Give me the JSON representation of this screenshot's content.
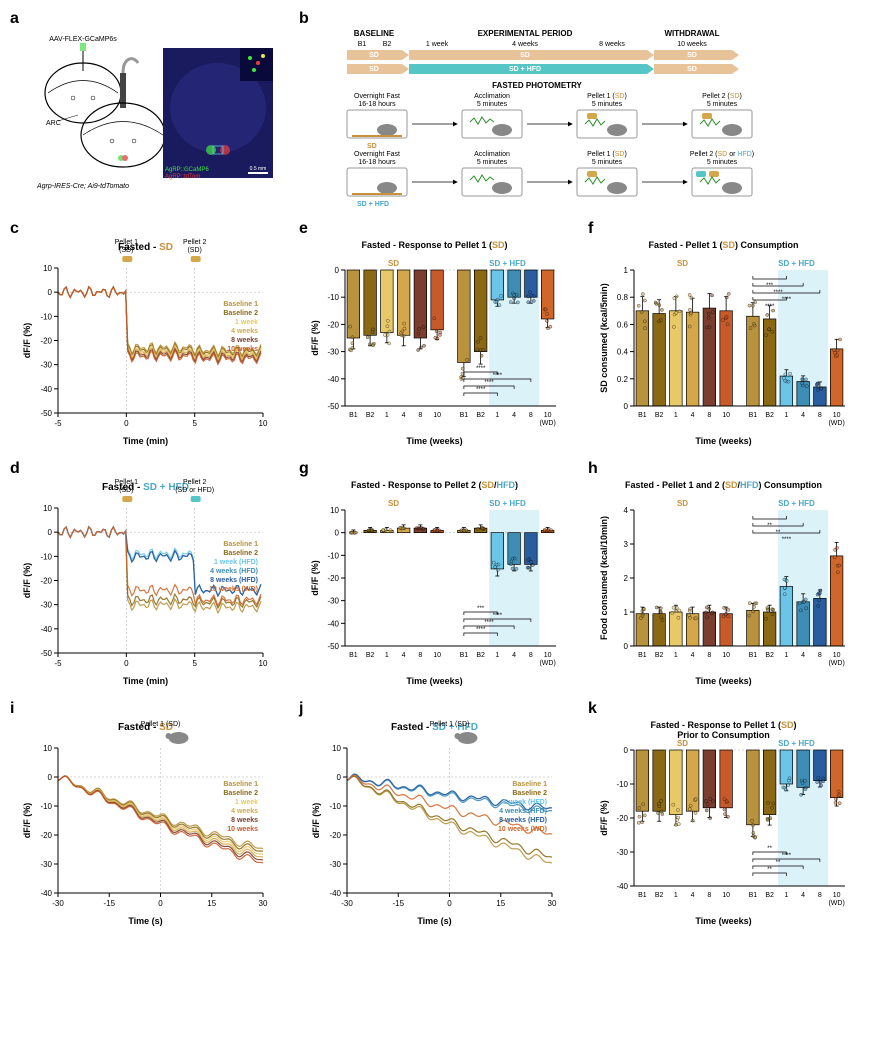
{
  "panels": {
    "a": {
      "label": "a"
    },
    "b": {
      "label": "b"
    },
    "c": {
      "label": "c"
    },
    "d": {
      "label": "d"
    },
    "e": {
      "label": "e"
    },
    "f": {
      "label": "f"
    },
    "g": {
      "label": "g"
    },
    "h": {
      "label": "h"
    },
    "i": {
      "label": "i"
    },
    "j": {
      "label": "j"
    },
    "k": {
      "label": "k"
    }
  },
  "colors": {
    "baseline1": "#b8923d",
    "baseline2": "#8b6914",
    "week1_sd": "#e8c968",
    "week4_sd": "#d4a84a",
    "week8_sd": "#7b3d2e",
    "week10_sd": "#c75a2a",
    "week1_hfd": "#6bc5e8",
    "week4_hfd": "#3d8db5",
    "week8_hfd": "#2a5d9e",
    "week10_wd": "#d1662a",
    "sd_label": "#c9913a",
    "hfd_label": "#4aa8c9",
    "sd_timeline": "#e8c39a",
    "hfd_timeline": "#56c5c5",
    "brain_bg": "#1a1a5e",
    "gcamp": "#3de83d",
    "tdtom": "#e83d3d"
  },
  "panel_a": {
    "virus_label": "AAV-FLEX-GCaMP6s",
    "region_label": "ARC",
    "mouse_line": "Agrp-IRES-Cre; Ai9-tdTomato",
    "inset_labels": {
      "gcamp": "AgRP::GCaMP6",
      "tdtom": "AgRP::tdTom"
    },
    "scale_bar": "0.5 mm"
  },
  "panel_b": {
    "phases": {
      "baseline": "BASELINE",
      "exp": "EXPERIMENTAL PERIOD",
      "wd": "WITHDRAWAL"
    },
    "baseline_marks": [
      "B1",
      "B2"
    ],
    "weeks": [
      "1 week",
      "4 weeks",
      "8 weeks",
      "10 weeks"
    ],
    "sd": "SD",
    "sdhfd": "SD + HFD",
    "photometry_header": "FASTED PHOTOMETRY",
    "steps": [
      "Overnight Fast\n16-18 hours",
      "Acclimation\n5 minutes",
      "Pellet 1 (SD)\n5 minutes",
      "Pellet 2 (SD)\n5 minutes"
    ],
    "steps_hfd": [
      "Overnight Fast\n16-18 hours",
      "Acclimation\n5 minutes",
      "Pellet 1 (SD)\n5 minutes",
      "Pellet 2 (SD or HFD)\n5 minutes"
    ]
  },
  "panel_c": {
    "title": "Fasted - SD",
    "pellet1": "Pellet 1\n(SD)",
    "pellet2": "Pellet 2\n(SD)",
    "ylabel": "dF/F (%)",
    "xlabel": "Time (min)",
    "xlim": [
      -5,
      10
    ],
    "ylim": [
      -50,
      10
    ],
    "xticks": [
      -5,
      0,
      5,
      10
    ],
    "yticks": [
      -50,
      -40,
      -30,
      -20,
      -10,
      0,
      10
    ],
    "legend": [
      "Baseline 1",
      "Baseline 2",
      "1 week",
      "4 weeks",
      "8 weeks",
      "10 weeks"
    ],
    "legend_colors": [
      "#b8923d",
      "#8b6914",
      "#e8c968",
      "#d4a84a",
      "#7b3d2e",
      "#c75a2a"
    ]
  },
  "panel_d": {
    "title": "Fasted - SD + HFD",
    "pellet1": "Pellet 1\n(SD)",
    "pellet2": "Pellet 2\n(SD or HFD)",
    "ylabel": "dF/F (%)",
    "xlabel": "Time (min)",
    "xlim": [
      -5,
      10
    ],
    "ylim": [
      -50,
      10
    ],
    "xticks": [
      -5,
      0,
      5,
      10
    ],
    "yticks": [
      -50,
      -40,
      -30,
      -20,
      -10,
      0,
      10
    ],
    "legend": [
      "Baseline 1",
      "Baseline 2",
      "1 week (HFD)",
      "4 weeks (HFD)",
      "8 weeks (HFD)",
      "10 weeks (WD)"
    ],
    "legend_colors": [
      "#b8923d",
      "#8b6914",
      "#6bc5e8",
      "#3d8db5",
      "#2a5d9e",
      "#d1662a"
    ]
  },
  "panel_e": {
    "title": "Fasted - Response to Pellet 1 (SD)",
    "groups": [
      "SD",
      "SD + HFD"
    ],
    "ylabel": "dF/F (%)",
    "xlabel": "Time (weeks)",
    "ylim": [
      -50,
      0
    ],
    "yticks": [
      -50,
      -40,
      -30,
      -20,
      -10,
      0
    ],
    "xlabels": [
      "B1",
      "B2",
      "1",
      "4",
      "8",
      "10",
      "B1",
      "B2",
      "1",
      "4",
      "8",
      "10\n(WD)"
    ],
    "bars_sd": [
      -25,
      -24,
      -23,
      -24,
      -25,
      -22
    ],
    "bars_hfd": [
      -34,
      -30,
      -11,
      -10,
      -10,
      -18
    ],
    "colors_sd": [
      "#b8923d",
      "#8b6914",
      "#e8c968",
      "#d4a84a",
      "#7b3d2e",
      "#c75a2a"
    ],
    "colors_hfd": [
      "#b8923d",
      "#8b6914",
      "#6bc5e8",
      "#3d8db5",
      "#2a5d9e",
      "#d1662a"
    ],
    "shade_cols": [
      8,
      9,
      10
    ],
    "sig": [
      "****",
      "****",
      "****",
      "****",
      "****"
    ]
  },
  "panel_f": {
    "title": "Fasted - Pellet 1 (SD) Consumption",
    "groups": [
      "SD",
      "SD + HFD"
    ],
    "ylabel": "SD consumed (kcal/5min)",
    "xlabel": "Time (weeks)",
    "ylim": [
      0,
      1.0
    ],
    "yticks": [
      0,
      0.2,
      0.4,
      0.6,
      0.8,
      1.0
    ],
    "xlabels": [
      "B1",
      "B2",
      "1",
      "4",
      "8",
      "10",
      "B1",
      "B2",
      "1",
      "4",
      "8",
      "10\n(WD)"
    ],
    "bars_sd": [
      0.7,
      0.68,
      0.7,
      0.69,
      0.72,
      0.7
    ],
    "bars_hfd": [
      0.66,
      0.64,
      0.22,
      0.18,
      0.14,
      0.42
    ],
    "colors_sd": [
      "#b8923d",
      "#8b6914",
      "#e8c968",
      "#d4a84a",
      "#7b3d2e",
      "#c75a2a"
    ],
    "colors_hfd": [
      "#b8923d",
      "#8b6914",
      "#6bc5e8",
      "#3d8db5",
      "#2a5d9e",
      "#d1662a"
    ],
    "shade_cols": [
      8,
      9,
      10
    ],
    "sig": [
      "***",
      "****",
      "****",
      "****",
      "*",
      "***"
    ]
  },
  "panel_g": {
    "title": "Fasted - Response to Pellet 2 (SD/HFD)",
    "groups": [
      "SD",
      "SD + HFD"
    ],
    "ylabel": "dF/F (%)",
    "xlabel": "Time (weeks)",
    "ylim": [
      -50,
      10
    ],
    "yticks": [
      -50,
      -40,
      -30,
      -20,
      -10,
      0,
      10
    ],
    "xlabels": [
      "B1",
      "B2",
      "1",
      "4",
      "8",
      "10",
      "B1",
      "B2",
      "1",
      "4",
      "8",
      "10\n(WD)"
    ],
    "bars_sd": [
      0,
      1,
      1,
      2,
      2,
      1
    ],
    "bars_hfd": [
      1,
      2,
      -16,
      -14,
      -14,
      1
    ],
    "colors_sd": [
      "#b8923d",
      "#8b6914",
      "#e8c968",
      "#d4a84a",
      "#7b3d2e",
      "#c75a2a"
    ],
    "colors_hfd": [
      "#b8923d",
      "#8b6914",
      "#6bc5e8",
      "#3d8db5",
      "#2a5d9e",
      "#d1662a"
    ],
    "shade_cols": [
      8,
      9,
      10
    ],
    "sig": [
      "****",
      "****",
      "****",
      "***",
      "****"
    ]
  },
  "panel_h": {
    "title": "Fasted - Pellet 1 and 2 (SD/HFD) Consumption",
    "groups": [
      "SD",
      "SD + HFD"
    ],
    "ylabel": "Food consumed (kcal/10min)",
    "xlabel": "Time (weeks)",
    "ylim": [
      0,
      4
    ],
    "yticks": [
      0,
      1,
      2,
      3,
      4
    ],
    "xlabels": [
      "B1",
      "B2",
      "1",
      "4",
      "8",
      "10",
      "B1",
      "B2",
      "1",
      "4",
      "8",
      "10\n(WD)"
    ],
    "bars_sd": [
      0.95,
      0.95,
      1.0,
      0.95,
      1.0,
      0.95
    ],
    "bars_hfd": [
      1.05,
      1.0,
      1.75,
      1.3,
      1.4,
      2.65
    ],
    "colors_sd": [
      "#b8923d",
      "#8b6914",
      "#e8c968",
      "#d4a84a",
      "#7b3d2e",
      "#c75a2a"
    ],
    "colors_hfd": [
      "#b8923d",
      "#8b6914",
      "#6bc5e8",
      "#3d8db5",
      "#2a5d9e",
      "#d1662a"
    ],
    "shade_cols": [
      8,
      9,
      10
    ],
    "sig": [
      "**",
      "**",
      "****"
    ]
  },
  "panel_i": {
    "title": "Fasted - SD",
    "pellet": "Pellet 1 (SD)",
    "ylabel": "dF/F (%)",
    "xlabel": "Time (s)",
    "xlim": [
      -30,
      30
    ],
    "ylim": [
      -40,
      10
    ],
    "xticks": [
      -30,
      -15,
      0,
      15,
      30
    ],
    "yticks": [
      -40,
      -30,
      -20,
      -10,
      0,
      10
    ],
    "legend": [
      "Baseline 1",
      "Baseline 2",
      "1 week",
      "4 weeks",
      "8 weeks",
      "10 weeks"
    ],
    "legend_colors": [
      "#b8923d",
      "#8b6914",
      "#e8c968",
      "#d4a84a",
      "#7b3d2e",
      "#c75a2a"
    ]
  },
  "panel_j": {
    "title": "Fasted - SD + HFD",
    "pellet": "Pellet 1 (SD)",
    "ylabel": "dF/F (%)",
    "xlabel": "Time (s)",
    "xlim": [
      -30,
      30
    ],
    "ylim": [
      -40,
      10
    ],
    "xticks": [
      -30,
      -15,
      0,
      15,
      30
    ],
    "yticks": [
      -40,
      -30,
      -20,
      -10,
      0,
      10
    ],
    "legend": [
      "Baseline 1",
      "Baseline 2",
      "1 week (HFD)",
      "4 weeks (HFD)",
      "8 weeks (HFD)",
      "10 weeks (WD)"
    ],
    "legend_colors": [
      "#b8923d",
      "#8b6914",
      "#6bc5e8",
      "#3d8db5",
      "#2a5d9e",
      "#d1662a"
    ]
  },
  "panel_k": {
    "title": "Fasted - Response to Pellet 1 (SD)\nPrior to Consumption",
    "groups": [
      "SD",
      "SD + HFD"
    ],
    "ylabel": "dF/F (%)",
    "xlabel": "Time (weeks)",
    "ylim": [
      -40,
      0
    ],
    "yticks": [
      -40,
      -30,
      -20,
      -10,
      0
    ],
    "xlabels": [
      "B1",
      "B2",
      "1",
      "4",
      "8",
      "10",
      "B1",
      "B2",
      "1",
      "4",
      "8",
      "10\n(WD)"
    ],
    "bars_sd": [
      -18,
      -18,
      -19,
      -18,
      -17,
      -17
    ],
    "bars_hfd": [
      -22,
      -19,
      -10,
      -11,
      -9,
      -14
    ],
    "colors_sd": [
      "#b8923d",
      "#8b6914",
      "#e8c968",
      "#d4a84a",
      "#7b3d2e",
      "#c75a2a"
    ],
    "colors_hfd": [
      "#b8923d",
      "#8b6914",
      "#6bc5e8",
      "#3d8db5",
      "#2a5d9e",
      "#d1662a"
    ],
    "shade_cols": [
      8,
      9,
      10
    ],
    "sig": [
      "**",
      "**",
      "****",
      "**"
    ]
  }
}
